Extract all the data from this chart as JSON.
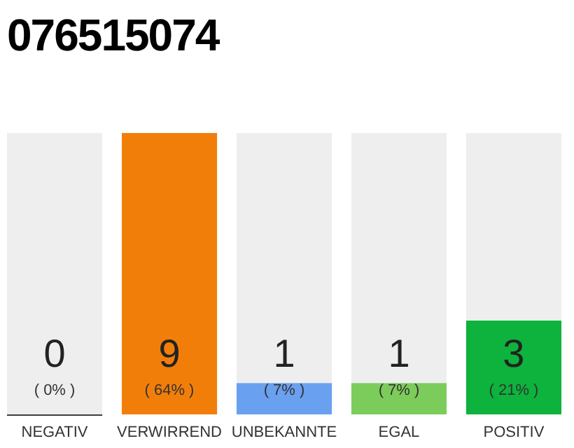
{
  "chart_data": {
    "type": "bar",
    "title": "076515074",
    "categories": [
      "NEGATIV",
      "VERWIRREND",
      "UNBEKANNTE",
      "EGAL",
      "POSITIV"
    ],
    "values": [
      0,
      9,
      1,
      1,
      3
    ],
    "colors": [
      "#3c3c3c",
      "#f27e0a",
      "#6aa0f0",
      "#7ccc5c",
      "#0db33c"
    ],
    "ylim": [
      0,
      9
    ],
    "data_labels": true,
    "annotations": [
      "( 0% )",
      "( 64% )",
      "( 7% )",
      "( 7% )",
      "( 21% )"
    ]
  }
}
